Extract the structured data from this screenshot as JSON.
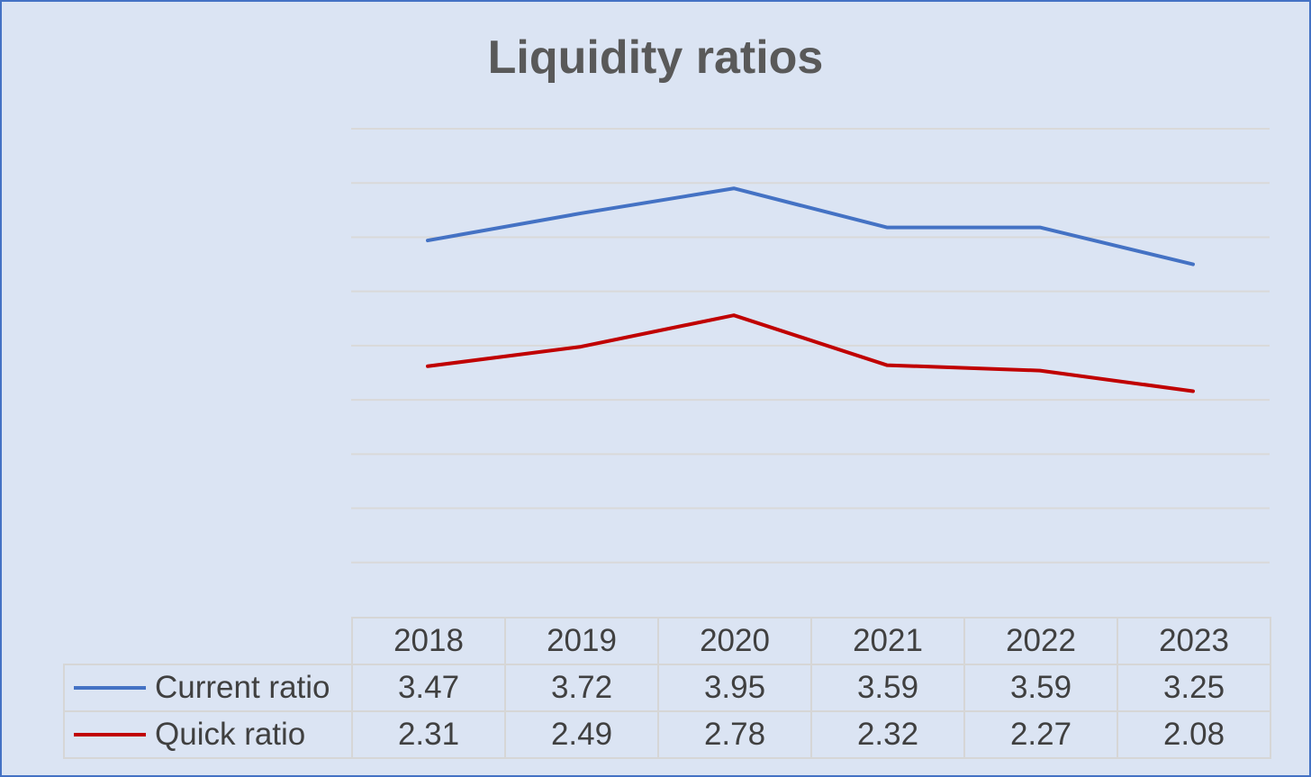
{
  "chart_data": {
    "type": "line",
    "title": "Liquidity ratios",
    "categories": [
      "2018",
      "2019",
      "2020",
      "2021",
      "2022",
      "2023"
    ],
    "series": [
      {
        "name": "Current ratio",
        "color": "#4472c4",
        "values": [
          3.47,
          3.72,
          3.95,
          3.59,
          3.59,
          3.25
        ]
      },
      {
        "name": "Quick ratio",
        "color": "#c00000",
        "values": [
          2.31,
          2.49,
          2.78,
          2.32,
          2.27,
          2.08
        ]
      }
    ],
    "ylim": [
      0,
      4.5
    ],
    "grid": true,
    "legend": "data-table"
  }
}
